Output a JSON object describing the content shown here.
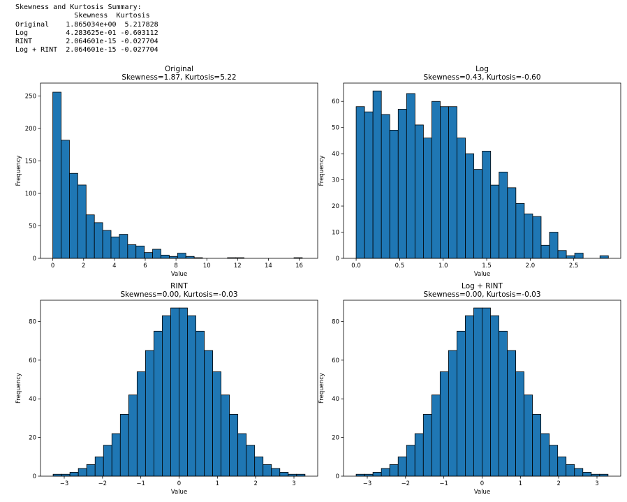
{
  "summary": {
    "title": "Skewness and Kurtosis Summary:",
    "header": "              Skewness  Kurtosis",
    "rows": [
      "Original    1.865034e+00  5.217828",
      "Log         4.283625e-01 -0.603112",
      "RINT        2.064601e-15 -0.027704",
      "Log + RINT  2.064601e-15 -0.027704"
    ]
  },
  "colors": {
    "bar_fill": "#1f77b4",
    "bar_edge": "#000000"
  },
  "chart_data": [
    {
      "type": "bar",
      "title": "Original",
      "subtitle": "Skewness=1.87, Kurtosis=5.22",
      "xlabel": "Value",
      "ylabel": "Frequency",
      "bin_start": 0.0,
      "bin_width": 0.54,
      "values": [
        256,
        182,
        131,
        113,
        67,
        55,
        43,
        33,
        37,
        21,
        19,
        9,
        14,
        5,
        3,
        8,
        3,
        1,
        0,
        0,
        0,
        1,
        1,
        0,
        0,
        0,
        0,
        0,
        0,
        1
      ],
      "xlim": [
        -0.8,
        17.2
      ],
      "ylim": [
        0,
        270
      ],
      "xticks": [
        0,
        2,
        4,
        6,
        8,
        10,
        12,
        14,
        16
      ],
      "xtick_labels": [
        "0",
        "2",
        "4",
        "6",
        "8",
        "10",
        "12",
        "14",
        "16"
      ],
      "yticks": [
        0,
        50,
        100,
        150,
        200,
        250
      ],
      "ytick_labels": [
        "0",
        "50",
        "100",
        "150",
        "200",
        "250"
      ]
    },
    {
      "type": "bar",
      "title": "Log",
      "subtitle": "Skewness=0.43, Kurtosis=-0.60",
      "xlabel": "Value",
      "ylabel": "Frequency",
      "bin_start": 0.0,
      "bin_width": 0.0966,
      "values": [
        58,
        56,
        64,
        55,
        49,
        57,
        63,
        51,
        46,
        60,
        58,
        58,
        46,
        40,
        34,
        41,
        28,
        33,
        27,
        21,
        17,
        16,
        5,
        10,
        3,
        1,
        2,
        0,
        0,
        1
      ],
      "xlim": [
        -0.145,
        3.04
      ],
      "ylim": [
        0,
        67
      ],
      "xticks": [
        0.0,
        0.5,
        1.0,
        1.5,
        2.0,
        2.5
      ],
      "xtick_labels": [
        "0.0",
        "0.5",
        "1.0",
        "1.5",
        "2.0",
        "2.5"
      ],
      "yticks": [
        0,
        10,
        20,
        30,
        40,
        50,
        60
      ],
      "ytick_labels": [
        "0",
        "10",
        "20",
        "30",
        "40",
        "50",
        "60"
      ]
    },
    {
      "type": "bar",
      "title": "RINT",
      "subtitle": "Skewness=0.00, Kurtosis=-0.03",
      "xlabel": "Value",
      "ylabel": "Frequency",
      "bin_start": -3.29,
      "bin_width": 0.2193,
      "values": [
        1,
        1,
        2,
        4,
        6,
        10,
        16,
        22,
        32,
        42,
        54,
        65,
        75,
        83,
        87,
        87,
        83,
        75,
        65,
        54,
        42,
        32,
        22,
        16,
        10,
        6,
        4,
        2,
        1,
        1
      ],
      "xlim": [
        -3.62,
        3.62
      ],
      "ylim": [
        0,
        91
      ],
      "xticks": [
        -3,
        -2,
        -1,
        0,
        1,
        2,
        3
      ],
      "xtick_labels": [
        "−3",
        "−2",
        "−1",
        "0",
        "1",
        "2",
        "3"
      ],
      "yticks": [
        0,
        20,
        40,
        60,
        80
      ],
      "ytick_labels": [
        "0",
        "20",
        "40",
        "60",
        "80"
      ]
    },
    {
      "type": "bar",
      "title": "Log + RINT",
      "subtitle": "Skewness=0.00, Kurtosis=-0.03",
      "xlabel": "Value",
      "ylabel": "Frequency",
      "bin_start": -3.29,
      "bin_width": 0.2193,
      "values": [
        1,
        1,
        2,
        4,
        6,
        10,
        16,
        22,
        32,
        42,
        54,
        65,
        75,
        83,
        87,
        87,
        83,
        75,
        65,
        54,
        42,
        32,
        22,
        16,
        10,
        6,
        4,
        2,
        1,
        1
      ],
      "xlim": [
        -3.62,
        3.62
      ],
      "ylim": [
        0,
        91
      ],
      "xticks": [
        -3,
        -2,
        -1,
        0,
        1,
        2,
        3
      ],
      "xtick_labels": [
        "−3",
        "−2",
        "−1",
        "0",
        "1",
        "2",
        "3"
      ],
      "yticks": [
        0,
        20,
        40,
        60,
        80
      ],
      "ytick_labels": [
        "0",
        "20",
        "40",
        "60",
        "80"
      ]
    }
  ]
}
